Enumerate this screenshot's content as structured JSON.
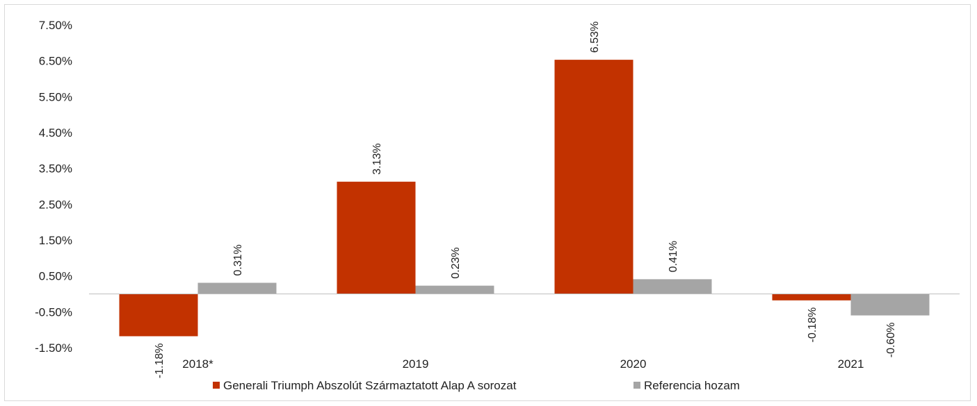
{
  "chart_data": {
    "type": "bar",
    "categories": [
      "2018*",
      "2019",
      "2020",
      "2021"
    ],
    "series": [
      {
        "name": "Generali Triumph Abszolút Származtatott Alap A sorozat",
        "values": [
          -1.18,
          3.13,
          6.53,
          -0.18
        ],
        "color": "#c23200"
      },
      {
        "name": "Referencia hozam",
        "values": [
          0.31,
          0.23,
          0.41,
          -0.6
        ],
        "color": "#a5a5a5"
      }
    ],
    "data_labels": [
      [
        "-1.18%",
        "3.13%",
        "6.53%",
        "-0.18%"
      ],
      [
        "0.31%",
        "0.23%",
        "0.41%",
        "-0.60%"
      ]
    ],
    "y_ticks": [
      "7.50%",
      "6.50%",
      "5.50%",
      "4.50%",
      "3.50%",
      "2.50%",
      "1.50%",
      "0.50%",
      "-0.50%",
      "-1.50%"
    ],
    "y_tick_values": [
      7.5,
      6.5,
      5.5,
      4.5,
      3.5,
      2.5,
      1.5,
      0.5,
      -0.5,
      -1.5
    ],
    "ylim": [
      -1.5,
      7.5
    ],
    "title": "",
    "xlabel": "",
    "ylabel": "",
    "grid": false,
    "legend_position": "bottom"
  }
}
